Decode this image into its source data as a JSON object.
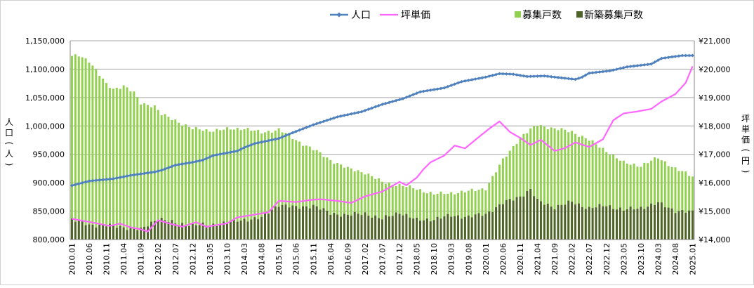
{
  "chart_data": {
    "type": "bar+line",
    "legend": {
      "placement": "top",
      "items": [
        {
          "label": "人口",
          "kind": "line-marker",
          "color": "#4f81bd"
        },
        {
          "label": "坪単価",
          "kind": "line",
          "color": "#ff66ff"
        },
        {
          "label": "募集戸数",
          "kind": "bar",
          "color": "#92d050"
        },
        {
          "label": "新築募集戸数",
          "kind": "bar",
          "color": "#4f6228"
        }
      ]
    },
    "y_left": {
      "label": "人口(人)",
      "min": 800000,
      "max": 1150000,
      "step": 50000,
      "ticks": [
        "800,000",
        "850,000",
        "900,000",
        "950,000",
        "1,000,000",
        "1,050,000",
        "1,100,000",
        "1,150,000"
      ]
    },
    "y_right": {
      "label": "坪単価(円)",
      "min": 14000,
      "max": 21000,
      "step": 1000,
      "ticks": [
        "¥14,000",
        "¥15,000",
        "¥16,000",
        "¥17,000",
        "¥18,000",
        "¥19,000",
        "¥20,000",
        "¥21,000"
      ]
    },
    "x": {
      "start": "2010.01",
      "end": "2025.01",
      "tick_labels": [
        "2010.01",
        "2010.06",
        "2010.11",
        "2011.04",
        "2011.09",
        "2012.02",
        "2012.07",
        "2012.12",
        "2013.05",
        "2013.10",
        "2014.03",
        "2014.08",
        "2015.01",
        "2015.06",
        "2015.11",
        "2016.04",
        "2016.09",
        "2017.02",
        "2017.07",
        "2017.12",
        "2018.05",
        "2018.10",
        "2019.03",
        "2019.08",
        "2020.01",
        "2020.06",
        "2020.11",
        "2021.04",
        "2021.09",
        "2022.02",
        "2022.07",
        "2022.12",
        "2023.05",
        "2023.10",
        "2024.03",
        "2024.08",
        "2025.01"
      ]
    },
    "grid": true,
    "series": [
      {
        "name": "人口",
        "axis": "left",
        "type": "line",
        "color": "#4f81bd",
        "points": [
          [
            "2010.01",
            895000
          ],
          [
            "2010.06",
            903000
          ],
          [
            "2011.01",
            907000
          ],
          [
            "2011.06",
            913000
          ],
          [
            "2012.01",
            919000
          ],
          [
            "2012.03",
            922000
          ],
          [
            "2012.07",
            931000
          ],
          [
            "2012.12",
            936000
          ],
          [
            "2013.03",
            940000
          ],
          [
            "2013.06",
            948000
          ],
          [
            "2014.01",
            956000
          ],
          [
            "2014.03",
            962000
          ],
          [
            "2014.06",
            969000
          ],
          [
            "2015.01",
            978000
          ],
          [
            "2015.05",
            988000
          ],
          [
            "2015.11",
            1002000
          ],
          [
            "2016.06",
            1016000
          ],
          [
            "2017.01",
            1025000
          ],
          [
            "2017.07",
            1038000
          ],
          [
            "2018.01",
            1048000
          ],
          [
            "2018.06",
            1060000
          ],
          [
            "2019.01",
            1067000
          ],
          [
            "2019.06",
            1078000
          ],
          [
            "2020.01",
            1086000
          ],
          [
            "2020.05",
            1092000
          ],
          [
            "2020.09",
            1091000
          ],
          [
            "2021.01",
            1087000
          ],
          [
            "2021.06",
            1088000
          ],
          [
            "2021.12",
            1084000
          ],
          [
            "2022.03",
            1082000
          ],
          [
            "2022.05",
            1086000
          ],
          [
            "2022.07",
            1093000
          ],
          [
            "2023.01",
            1097000
          ],
          [
            "2023.06",
            1104000
          ],
          [
            "2024.01",
            1109000
          ],
          [
            "2024.04",
            1119000
          ],
          [
            "2024.10",
            1124000
          ],
          [
            "2025.01",
            1124000
          ]
        ]
      },
      {
        "name": "坪単価",
        "axis": "right",
        "type": "line",
        "color": "#ff66ff",
        "points": [
          [
            "2010.01",
            14730
          ],
          [
            "2010.06",
            14620
          ],
          [
            "2010.12",
            14480
          ],
          [
            "2011.03",
            14560
          ],
          [
            "2011.06",
            14430
          ],
          [
            "2011.09",
            14360
          ],
          [
            "2011.11",
            14280
          ],
          [
            "2012.02",
            14680
          ],
          [
            "2012.06",
            14540
          ],
          [
            "2012.09",
            14450
          ],
          [
            "2013.01",
            14610
          ],
          [
            "2013.04",
            14450
          ],
          [
            "2013.10",
            14570
          ],
          [
            "2014.01",
            14780
          ],
          [
            "2014.06",
            14880
          ],
          [
            "2014.10",
            14960
          ],
          [
            "2015.01",
            15360
          ],
          [
            "2015.06",
            15320
          ],
          [
            "2015.10",
            15390
          ],
          [
            "2016.01",
            15420
          ],
          [
            "2016.06",
            15360
          ],
          [
            "2016.10",
            15290
          ],
          [
            "2017.02",
            15520
          ],
          [
            "2017.07",
            15690
          ],
          [
            "2017.12",
            16030
          ],
          [
            "2018.02",
            15910
          ],
          [
            "2018.05",
            16180
          ],
          [
            "2018.07",
            16480
          ],
          [
            "2018.09",
            16720
          ],
          [
            "2019.01",
            16960
          ],
          [
            "2019.04",
            17310
          ],
          [
            "2019.07",
            17210
          ],
          [
            "2019.11",
            17610
          ],
          [
            "2020.02",
            17900
          ],
          [
            "2020.05",
            18160
          ],
          [
            "2020.08",
            17790
          ],
          [
            "2020.11",
            17580
          ],
          [
            "2021.02",
            17330
          ],
          [
            "2021.05",
            17510
          ],
          [
            "2021.09",
            17120
          ],
          [
            "2021.12",
            17220
          ],
          [
            "2022.03",
            17420
          ],
          [
            "2022.07",
            17260
          ],
          [
            "2022.11",
            17530
          ],
          [
            "2023.02",
            18200
          ],
          [
            "2023.05",
            18440
          ],
          [
            "2023.09",
            18510
          ],
          [
            "2024.01",
            18600
          ],
          [
            "2024.04",
            18860
          ],
          [
            "2024.08",
            19120
          ],
          [
            "2024.11",
            19520
          ],
          [
            "2025.01",
            20100
          ]
        ]
      },
      {
        "name": "募集戸数",
        "axis": "left",
        "type": "bar",
        "color": "#92d050",
        "points": [
          [
            "2010.01",
            1122000
          ],
          [
            "2010.03",
            1124000
          ],
          [
            "2010.06",
            1115000
          ],
          [
            "2010.11",
            1073000
          ],
          [
            "2011.01",
            1065000
          ],
          [
            "2011.04",
            1071000
          ],
          [
            "2011.07",
            1058000
          ],
          [
            "2011.09",
            1040000
          ],
          [
            "2012.01",
            1035000
          ],
          [
            "2012.03",
            1020000
          ],
          [
            "2012.07",
            1010000
          ],
          [
            "2012.12",
            995000
          ],
          [
            "2013.05",
            992000
          ],
          [
            "2013.10",
            994000
          ],
          [
            "2014.03",
            996000
          ],
          [
            "2014.08",
            988000
          ],
          [
            "2015.01",
            994000
          ],
          [
            "2015.06",
            975000
          ],
          [
            "2015.11",
            959000
          ],
          [
            "2016.04",
            940000
          ],
          [
            "2016.09",
            925000
          ],
          [
            "2017.02",
            918000
          ],
          [
            "2017.07",
            901000
          ],
          [
            "2017.12",
            896000
          ],
          [
            "2018.05",
            889000
          ],
          [
            "2018.10",
            880000
          ],
          [
            "2019.03",
            882000
          ],
          [
            "2019.08",
            885000
          ],
          [
            "2020.01",
            890000
          ],
          [
            "2020.06",
            940000
          ],
          [
            "2020.11",
            980000
          ],
          [
            "2021.04",
            1002000
          ],
          [
            "2021.09",
            995000
          ],
          [
            "2022.02",
            990000
          ],
          [
            "2022.07",
            975000
          ],
          [
            "2022.12",
            956000
          ],
          [
            "2023.05",
            935000
          ],
          [
            "2023.10",
            930000
          ],
          [
            "2024.03",
            944000
          ],
          [
            "2024.08",
            925000
          ],
          [
            "2025.01",
            911000
          ]
        ]
      },
      {
        "name": "新築募集戸数",
        "axis": "left",
        "type": "bar",
        "color": "#4f6228",
        "points": [
          [
            "2010.01",
            835000
          ],
          [
            "2010.06",
            826000
          ],
          [
            "2010.11",
            825000
          ],
          [
            "2011.04",
            822000
          ],
          [
            "2011.09",
            817000
          ],
          [
            "2012.02",
            838000
          ],
          [
            "2012.07",
            828000
          ],
          [
            "2012.12",
            826000
          ],
          [
            "2013.05",
            825000
          ],
          [
            "2013.10",
            830000
          ],
          [
            "2014.03",
            835000
          ],
          [
            "2014.08",
            838000
          ],
          [
            "2015.01",
            862000
          ],
          [
            "2015.06",
            856000
          ],
          [
            "2015.11",
            860000
          ],
          [
            "2016.04",
            846000
          ],
          [
            "2016.09",
            843000
          ],
          [
            "2017.02",
            846000
          ],
          [
            "2017.07",
            836000
          ],
          [
            "2017.12",
            848000
          ],
          [
            "2018.05",
            834000
          ],
          [
            "2018.10",
            836000
          ],
          [
            "2019.03",
            842000
          ],
          [
            "2019.08",
            840000
          ],
          [
            "2020.01",
            845000
          ],
          [
            "2020.06",
            864000
          ],
          [
            "2020.11",
            876000
          ],
          [
            "2021.02",
            888000
          ],
          [
            "2021.04",
            868000
          ],
          [
            "2021.09",
            857000
          ],
          [
            "2022.02",
            866000
          ],
          [
            "2022.07",
            855000
          ],
          [
            "2022.12",
            860000
          ],
          [
            "2023.05",
            852000
          ],
          [
            "2023.10",
            856000
          ],
          [
            "2024.03",
            864000
          ],
          [
            "2024.08",
            851000
          ],
          [
            "2025.01",
            848000
          ]
        ]
      }
    ]
  }
}
